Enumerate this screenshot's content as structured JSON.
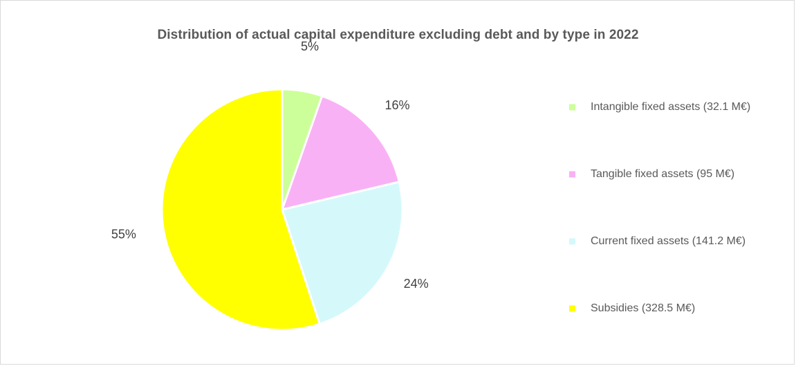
{
  "chart_data": {
    "type": "pie",
    "title": "Distribution of actual capital expenditure excluding debt and by type in 2022",
    "categories": [
      "Intangible fixed assets (32.1 M€)",
      "Tangible fixed assets (95 M€)",
      "Current fixed assets (141.2 M€)",
      "Subsidies (328.5 M€)"
    ],
    "values": [
      32.1,
      95,
      141.2,
      328.5
    ],
    "unit": "M€",
    "data_labels": [
      "5%",
      "16%",
      "24%",
      "55%"
    ],
    "colors": [
      "#ccff99",
      "#f9b1f5",
      "#d5f9fb",
      "#ffff00"
    ],
    "legend_position": "right",
    "start_angle_deg": 0,
    "direction": "clockwise"
  }
}
